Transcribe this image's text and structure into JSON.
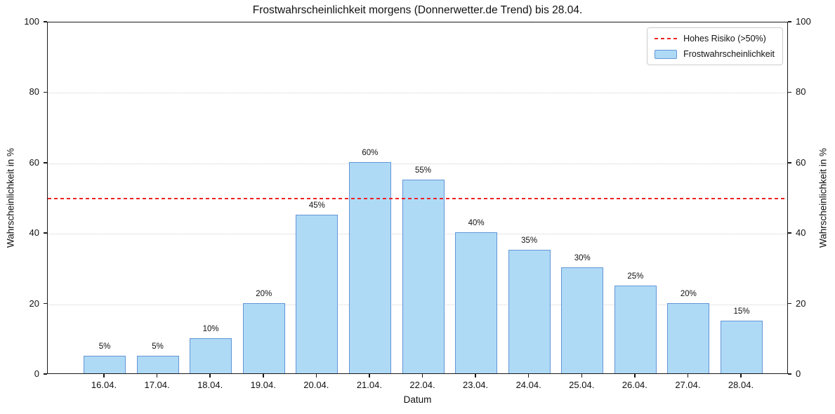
{
  "chart_data": {
    "type": "bar",
    "title": "Frostwahrscheinlichkeit morgens (Donnerwetter.de Trend) bis 28.04.",
    "xlabel": "Datum",
    "ylabel": "Wahrscheinlichkeit in %",
    "categories": [
      "16.04.",
      "17.04.",
      "18.04.",
      "19.04.",
      "20.04.",
      "21.04.",
      "22.04.",
      "23.04.",
      "24.04.",
      "25.04.",
      "26.04.",
      "27.04.",
      "28.04."
    ],
    "values": [
      5,
      5,
      10,
      20,
      45,
      60,
      55,
      40,
      35,
      30,
      25,
      20,
      15
    ],
    "bar_labels": [
      "5%",
      "5%",
      "10%",
      "20%",
      "45%",
      "60%",
      "55%",
      "40%",
      "35%",
      "30%",
      "25%",
      "20%",
      "15%"
    ],
    "ylim": [
      0,
      100
    ],
    "yticks": [
      0,
      20,
      40,
      60,
      80,
      100
    ],
    "grid": {
      "horizontal": true,
      "style": "dotted",
      "color": "#cfcfcf"
    },
    "threshold_line": {
      "value": 50,
      "style": "dashed",
      "color": "#EE2222"
    },
    "legend": {
      "position": "top-right",
      "entries": [
        {
          "label": "Hohes Risiko (>50%)",
          "swatch": "red-dashed-line"
        },
        {
          "label": "Frostwahrscheinlichkeit",
          "swatch": "lightblue-bar-patch"
        }
      ]
    },
    "colors": {
      "bar_fill": "#AEDAF6",
      "bar_edge": "#6495D6",
      "threshold": "#EE2222",
      "axis": "#1A1A1A",
      "grid": "#CFCFCF"
    }
  }
}
